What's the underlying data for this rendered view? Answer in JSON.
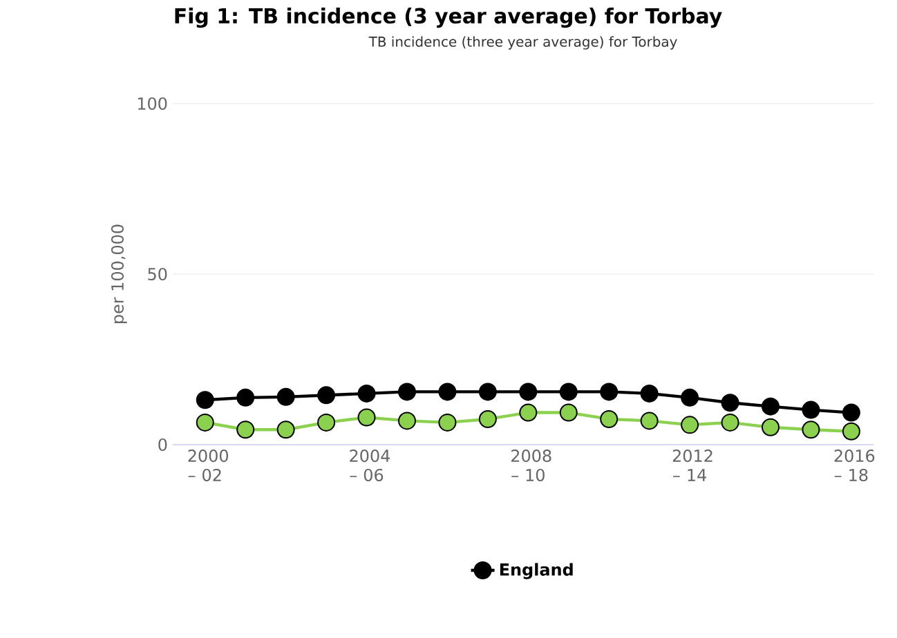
{
  "chart_data": {
    "type": "line",
    "title": "Fig 1: TB incidence (3 year average) for Torbay",
    "subtitle": "TB incidence (three year average) for Torbay",
    "ylabel": "per 100,000",
    "categories": [
      "2000 – 02",
      null,
      null,
      null,
      "2004 – 06",
      null,
      null,
      null,
      "2008 – 10",
      null,
      null,
      null,
      "2012 – 14",
      null,
      null,
      null,
      "2016 – 18"
    ],
    "series": [
      {
        "name": "England",
        "color": "#000000",
        "values": [
          13.1,
          13.8,
          14,
          14.5,
          15,
          15.5,
          15.5,
          15.5,
          15.5,
          15.5,
          15.5,
          15,
          13.8,
          12.3,
          11.2,
          10.2,
          9.4
        ]
      },
      {
        "color": "#8bd14f",
        "values": [
          6.5,
          4.4,
          4.4,
          6.5,
          8,
          7,
          6.5,
          7.5,
          9.4,
          9.4,
          7.5,
          7,
          5.8,
          6.5,
          5.1,
          4.4,
          3.9
        ]
      }
    ],
    "ylim": [
      0,
      100
    ],
    "yticks": [
      0,
      50,
      100
    ],
    "grid": "y",
    "legend": "bottom",
    "marker": "circle",
    "line_style": "solid"
  }
}
